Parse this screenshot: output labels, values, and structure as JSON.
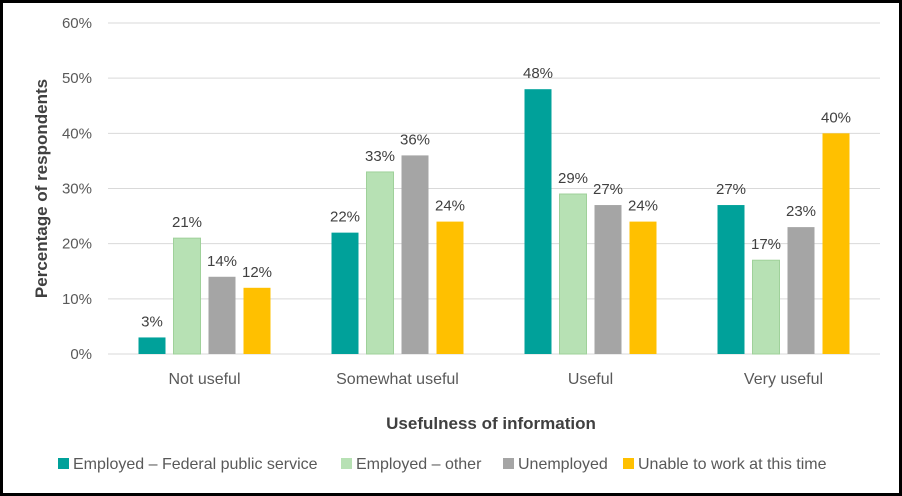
{
  "chart_data": {
    "type": "bar",
    "title": "",
    "xlabel": "Usefulness of information",
    "ylabel": "Percentage of respondents",
    "ylim": [
      0,
      60
    ],
    "yticks": [
      0,
      10,
      20,
      30,
      40,
      50,
      60
    ],
    "ytick_labels": [
      "0%",
      "10%",
      "20%",
      "30%",
      "40%",
      "50%",
      "60%"
    ],
    "grid": true,
    "legend_position": "bottom",
    "categories": [
      "Not useful",
      "Somewhat useful",
      "Useful",
      "Very useful"
    ],
    "series": [
      {
        "name": "Employed – Federal public service",
        "color": "#00A19A",
        "values": [
          3,
          22,
          48,
          27
        ],
        "labels": [
          "3%",
          "22%",
          "48%",
          "27%"
        ]
      },
      {
        "name": "Employed – other",
        "color": "#B7E1B4",
        "values": [
          21,
          33,
          29,
          17
        ],
        "labels": [
          "21%",
          "33%",
          "29%",
          "17%"
        ]
      },
      {
        "name": "Unemployed",
        "color": "#A5A5A5",
        "values": [
          14,
          36,
          27,
          23
        ],
        "labels": [
          "14%",
          "36%",
          "27%",
          "23%"
        ]
      },
      {
        "name": "Unable to work at this time",
        "color": "#FFC000",
        "values": [
          12,
          24,
          24,
          40
        ],
        "labels": [
          "12%",
          "24%",
          "24%",
          "40%"
        ]
      }
    ]
  }
}
